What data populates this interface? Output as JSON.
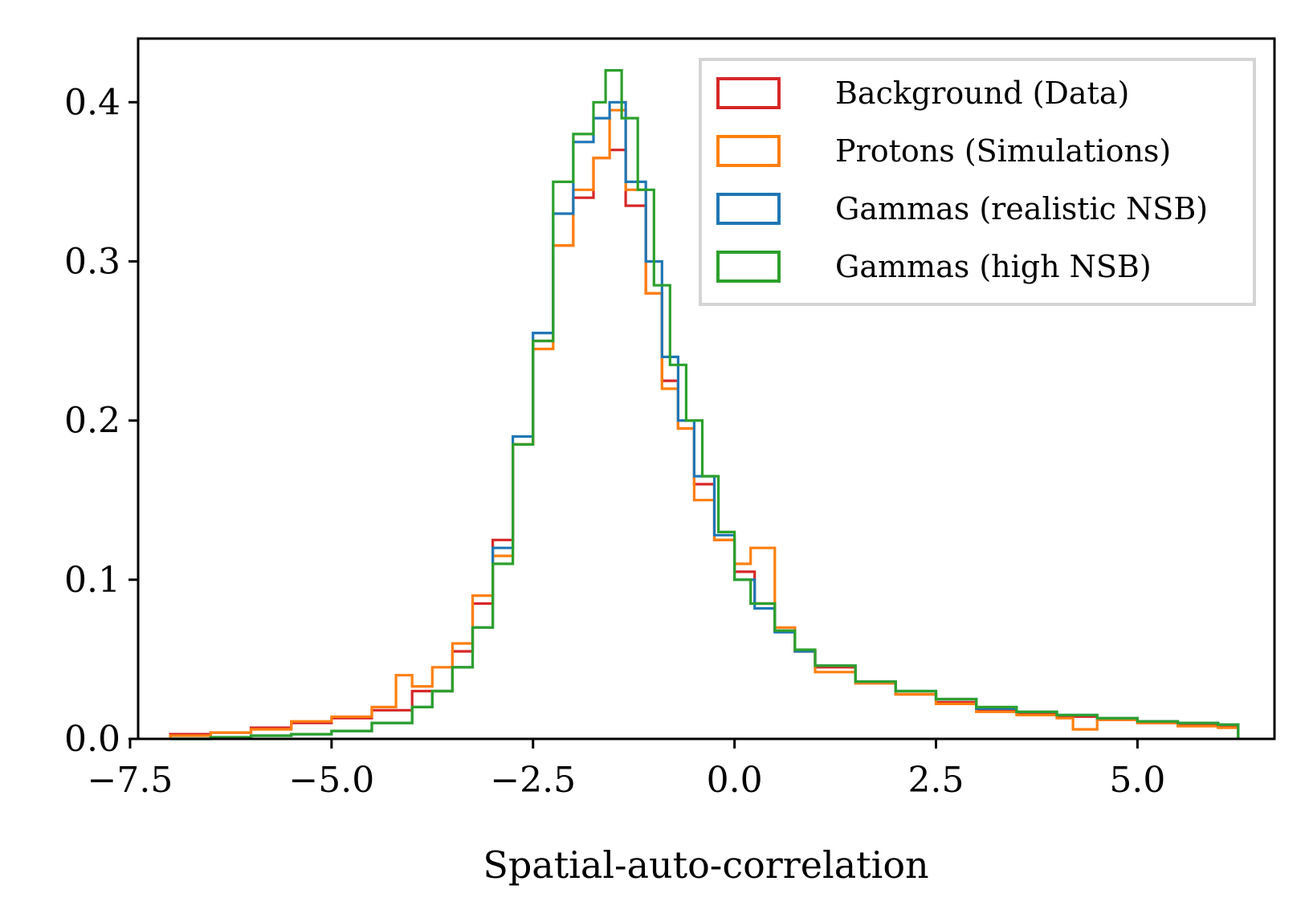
{
  "chart_data": {
    "type": "histogram-step",
    "xlabel": "Spatial-auto-correlation",
    "ylabel": "",
    "xlim": [
      -7.4,
      6.7
    ],
    "ylim": [
      0,
      0.44
    ],
    "xticks": [
      -7.5,
      -5.0,
      -2.5,
      0.0,
      2.5,
      5.0
    ],
    "xtick_labels": [
      "−7.5",
      "−5.0",
      "−2.5",
      "0.0",
      "2.5",
      "5.0"
    ],
    "yticks": [
      0.0,
      0.1,
      0.2,
      0.3,
      0.4
    ],
    "ytick_labels": [
      "0.0",
      "0.1",
      "0.2",
      "0.3",
      "0.4"
    ],
    "legend_position": "top-right",
    "series": [
      {
        "name": "Background (Data)",
        "color": "#d62728",
        "x": [
          -7.0,
          -6.5,
          -6.0,
          -5.5,
          -5.0,
          -4.5,
          -4.0,
          -3.5,
          -3.25,
          -3.0,
          -2.75,
          -2.5,
          -2.25,
          -2.0,
          -1.75,
          -1.55,
          -1.35,
          -1.1,
          -0.9,
          -0.7,
          -0.5,
          -0.25,
          0.0,
          0.25,
          0.5,
          0.75,
          1.0,
          1.5,
          2.0,
          2.5,
          3.0,
          3.5,
          4.0,
          4.5,
          5.0,
          5.5,
          6.0
        ],
        "values": [
          0.003,
          0.004,
          0.007,
          0.01,
          0.013,
          0.018,
          0.03,
          0.055,
          0.085,
          0.125,
          0.185,
          0.25,
          0.31,
          0.34,
          0.365,
          0.37,
          0.335,
          0.28,
          0.225,
          0.195,
          0.16,
          0.125,
          0.105,
          0.085,
          0.068,
          0.055,
          0.045,
          0.035,
          0.028,
          0.023,
          0.018,
          0.016,
          0.014,
          0.012,
          0.01,
          0.009,
          0.008
        ]
      },
      {
        "name": "Protons (Simulations)",
        "color": "#ff7f0e",
        "x": [
          -7.0,
          -6.5,
          -6.0,
          -5.5,
          -5.0,
          -4.5,
          -4.2,
          -4.0,
          -3.75,
          -3.5,
          -3.25,
          -3.0,
          -2.75,
          -2.5,
          -2.25,
          -2.0,
          -1.75,
          -1.55,
          -1.35,
          -1.1,
          -0.9,
          -0.7,
          -0.5,
          -0.25,
          0.0,
          0.2,
          0.5,
          0.75,
          1.0,
          1.5,
          2.0,
          2.5,
          3.0,
          3.5,
          4.0,
          4.2,
          4.5,
          5.0,
          5.5,
          6.0
        ],
        "values": [
          0.002,
          0.004,
          0.006,
          0.011,
          0.014,
          0.02,
          0.04,
          0.033,
          0.045,
          0.06,
          0.09,
          0.115,
          0.185,
          0.245,
          0.31,
          0.345,
          0.365,
          0.395,
          0.345,
          0.28,
          0.22,
          0.195,
          0.15,
          0.125,
          0.11,
          0.12,
          0.07,
          0.055,
          0.042,
          0.035,
          0.028,
          0.022,
          0.017,
          0.015,
          0.013,
          0.006,
          0.012,
          0.01,
          0.008,
          0.007
        ]
      },
      {
        "name": "Gammas (realistic NSB)",
        "color": "#1f77b4",
        "x": [
          -7.0,
          -6.5,
          -6.0,
          -5.5,
          -5.0,
          -4.5,
          -4.0,
          -3.75,
          -3.5,
          -3.25,
          -3.0,
          -2.75,
          -2.5,
          -2.25,
          -2.0,
          -1.75,
          -1.55,
          -1.35,
          -1.1,
          -0.9,
          -0.7,
          -0.5,
          -0.25,
          0.0,
          0.25,
          0.5,
          0.75,
          1.0,
          1.5,
          2.0,
          2.5,
          3.0,
          3.5,
          4.0,
          4.5,
          5.0,
          5.5,
          6.0
        ],
        "values": [
          0.0,
          0.001,
          0.002,
          0.003,
          0.005,
          0.01,
          0.02,
          0.03,
          0.045,
          0.07,
          0.12,
          0.19,
          0.255,
          0.33,
          0.375,
          0.39,
          0.4,
          0.35,
          0.3,
          0.24,
          0.2,
          0.165,
          0.128,
          0.1,
          0.082,
          0.067,
          0.055,
          0.046,
          0.036,
          0.03,
          0.025,
          0.019,
          0.017,
          0.015,
          0.013,
          0.011,
          0.01,
          0.009
        ]
      },
      {
        "name": "Gammas (high NSB)",
        "color": "#2ca02c",
        "x": [
          -7.0,
          -6.5,
          -6.0,
          -5.5,
          -5.0,
          -4.5,
          -4.0,
          -3.75,
          -3.5,
          -3.25,
          -3.0,
          -2.75,
          -2.5,
          -2.25,
          -2.0,
          -1.75,
          -1.6,
          -1.4,
          -1.2,
          -1.0,
          -0.8,
          -0.6,
          -0.4,
          -0.2,
          0.0,
          0.2,
          0.5,
          0.75,
          1.0,
          1.5,
          2.0,
          2.5,
          3.0,
          3.5,
          4.0,
          4.5,
          5.0,
          5.5,
          6.0
        ],
        "values": [
          0.0,
          0.001,
          0.002,
          0.003,
          0.005,
          0.01,
          0.02,
          0.03,
          0.045,
          0.07,
          0.11,
          0.185,
          0.25,
          0.35,
          0.38,
          0.4,
          0.42,
          0.39,
          0.345,
          0.285,
          0.235,
          0.2,
          0.165,
          0.13,
          0.1,
          0.085,
          0.068,
          0.056,
          0.046,
          0.036,
          0.03,
          0.025,
          0.02,
          0.017,
          0.015,
          0.013,
          0.011,
          0.01,
          0.009
        ]
      }
    ]
  }
}
